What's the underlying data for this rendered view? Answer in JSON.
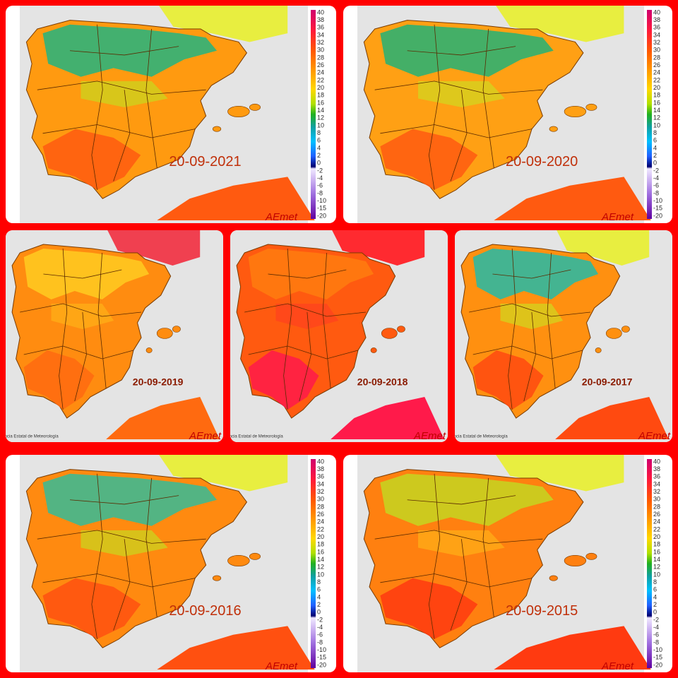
{
  "panels": [
    {
      "date": "20-09-2021",
      "logo": "AEmet"
    },
    {
      "date": "20-09-2020",
      "logo": "AEmet"
    },
    {
      "date": "20-09-2019",
      "logo": "AEmet",
      "footer": "Agencia Estatal de Meteorología"
    },
    {
      "date": "20-09-2018",
      "logo": "AEmet",
      "footer": "Agencia Estatal de Meteorología"
    },
    {
      "date": "20-09-2017",
      "logo": "AEmet",
      "footer": "Agencia Estatal de Meteorología"
    },
    {
      "date": "20-09-2016",
      "logo": "AEmet"
    },
    {
      "date": "20-09-2015",
      "logo": "AEmet"
    }
  ],
  "legend_labels": [
    40,
    38,
    36,
    34,
    32,
    30,
    28,
    26,
    24,
    22,
    20,
    18,
    16,
    14,
    12,
    10,
    8,
    6,
    4,
    2,
    0,
    -2,
    -4,
    -6,
    -8,
    -10,
    -15,
    -20
  ]
}
